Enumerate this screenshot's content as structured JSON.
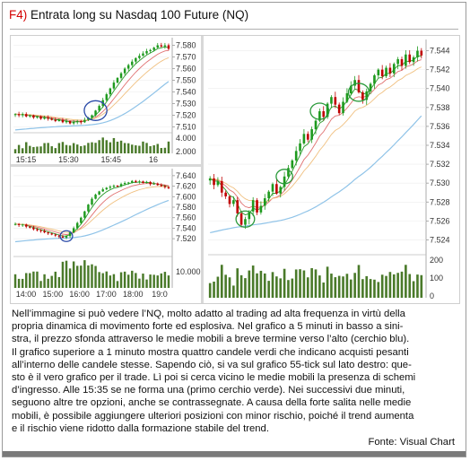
{
  "header": {
    "code": "F4)",
    "title": "Entrata long su Nasdaq 100 Future (NQ)"
  },
  "colors": {
    "code": "#d40000",
    "candle_up": "#1e9a1e",
    "candle_down": "#c00000",
    "ma_fast": "#2a9a2a",
    "ma_mid": "#e07070",
    "ma_slow": "#f0c080",
    "ma_long": "#8fc3e8",
    "volume": "#4a7a2a",
    "circle_blue": "#2a4aa8",
    "circle_green": "#2a9a3a"
  },
  "chart_data": [
    {
      "type": "candlestick",
      "panel": "1-minute",
      "y_ticks": [
        "7.580",
        "7.570",
        "7.560",
        "7.550",
        "7.540",
        "7.530",
        "7.520",
        "7.510"
      ],
      "ylim": [
        7505,
        7585
      ],
      "x_ticks": [
        "15:15",
        "15:30",
        "15:45",
        "16"
      ],
      "volume_ticks": [
        "4.000",
        "2.000"
      ],
      "annotations": [
        "blue circle around four green candles near 15:30"
      ],
      "close": [
        7521,
        7520,
        7521,
        7519,
        7520,
        7518,
        7519,
        7517,
        7518,
        7517,
        7516,
        7515,
        7516,
        7514,
        7515,
        7513,
        7514,
        7515,
        7514,
        7516,
        7518,
        7520,
        7524,
        7528,
        7533,
        7538,
        7543,
        7548,
        7552,
        7556,
        7560,
        7563,
        7566,
        7569,
        7571,
        7573,
        7575,
        7576,
        7578,
        7580,
        7579,
        7580,
        7577
      ]
    },
    {
      "type": "candlestick",
      "panel": "5-minute",
      "y_ticks": [
        "7.640",
        "7.620",
        "7.600",
        "7.580",
        "7.560",
        "7.540",
        "7.520"
      ],
      "ylim": [
        7510,
        7650
      ],
      "x_ticks": [
        "14:00",
        "15:00",
        "16:00",
        "17:00",
        "18:00",
        "19:0"
      ],
      "volume_ticks": [
        "10.000"
      ],
      "annotations": [
        "blue circle around breakout candle near 15:00"
      ],
      "close": [
        7548,
        7546,
        7547,
        7543,
        7541,
        7538,
        7536,
        7535,
        7532,
        7530,
        7528,
        7526,
        7524,
        7522,
        7525,
        7532,
        7540,
        7550,
        7560,
        7572,
        7585,
        7596,
        7604,
        7610,
        7614,
        7617,
        7619,
        7621,
        7620,
        7624,
        7626,
        7627,
        7630,
        7628,
        7629,
        7626,
        7628,
        7624,
        7625,
        7622,
        7620,
        7618,
        7616
      ]
    },
    {
      "type": "candlestick",
      "panel": "55-tick",
      "y_ticks": [
        "7.544",
        "7.542",
        "7.540",
        "7.538",
        "7.536",
        "7.534",
        "7.532",
        "7.530",
        "7.528",
        "7.526",
        "7.524"
      ],
      "ylim": [
        7523,
        7545
      ],
      "volume_ticks": [
        "200",
        "100",
        "0"
      ],
      "annotations": [
        "four green circles marking pullback entries to the moving averages"
      ],
      "close": [
        7530.5,
        7529.8,
        7530.2,
        7529.0,
        7528.6,
        7527.8,
        7528.2,
        7526.8,
        7525.6,
        7526.2,
        7527.0,
        7528.2,
        7526.9,
        7527.6,
        7528.4,
        7529.1,
        7529.9,
        7528.9,
        7529.6,
        7530.7,
        7531.6,
        7532.4,
        7533.4,
        7534.2,
        7535.2,
        7534.6,
        7535.7,
        7536.6,
        7537.6,
        7537.0,
        7538.4,
        7539.1,
        7538.3,
        7537.4,
        7538.6,
        7539.5,
        7540.3,
        7540.9,
        7539.6,
        7538.8,
        7539.7,
        7540.5,
        7541.4,
        7542.0,
        7541.3,
        7542.2,
        7541.6,
        7542.6,
        7543.1,
        7542.4,
        7543.6,
        7542.8,
        7543.3,
        7544.0,
        7543.5
      ]
    }
  ],
  "body_lines": [
    "Nell’immagine si può vedere l’NQ, molto adatto al trading ad alta frequenza in virtù della",
    "propria dinamica di movimento forte ed esplosiva. Nel grafico a 5 minuti in basso a sini-",
    "stra, il prezzo sfonda attraverso le medie mobili a breve termine verso l’alto (cerchio blu).",
    "Il grafico superiore a 1 minuto mostra quattro candele verdi che indicano acquisti pesanti",
    "all’interno delle candele stesse. Sapendo ciò, si va sul grafico 55-tick sul lato destro: que-",
    "sto è il vero grafico per il trade. Lì poi si cerca vicino le medie mobili la presenza di schemi",
    "d’ingresso. Alle 15:35 se ne forma una (primo cerchio verde). Nei successivi due minuti,",
    "seguono altre tre opzioni, anche se contrassegnate. A causa della forte salita nelle medie",
    "mobili, è possibile aggiungere ulteriori posizioni con minor rischio, poiché il trend aumenta",
    "e il rischio viene ridotto dalla formazione stabile del trend."
  ],
  "source": "Fonte: Visual Chart"
}
